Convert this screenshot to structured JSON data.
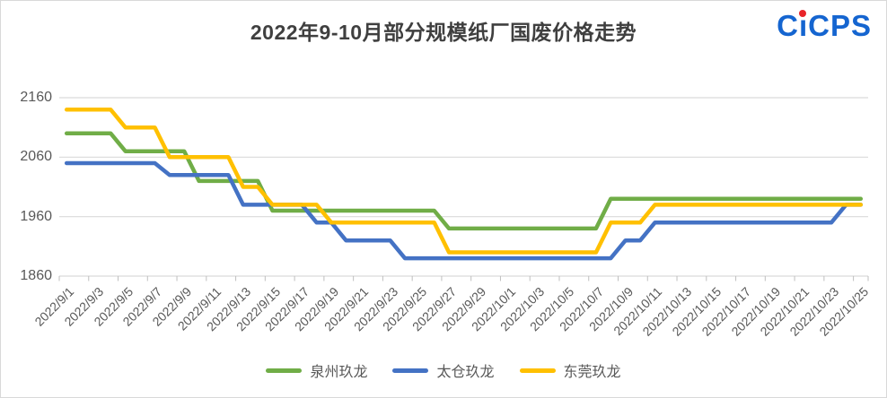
{
  "title": "2022年9-10月部分规模纸厂国废价格走势",
  "logo": {
    "text": "CıCPS",
    "dot_color": "#e8252a",
    "text_color": "#1565d0"
  },
  "y_axis": {
    "tick_labels": [
      "2160",
      "2060",
      "1960",
      "1860"
    ]
  },
  "chart_data": {
    "type": "line",
    "title": "2022年9-10月部分规模纸厂国废价格走势",
    "xlabel": "",
    "ylabel": "",
    "ylim": [
      1860,
      2160
    ],
    "y_ticks": [
      1860,
      1960,
      2060,
      2160
    ],
    "grid": "horizontal",
    "legend_position": "bottom",
    "x_label_every": 2,
    "x": [
      "2022/9/1",
      "2022/9/2",
      "2022/9/3",
      "2022/9/4",
      "2022/9/5",
      "2022/9/6",
      "2022/9/7",
      "2022/9/8",
      "2022/9/9",
      "2022/9/10",
      "2022/9/11",
      "2022/9/12",
      "2022/9/13",
      "2022/9/14",
      "2022/9/15",
      "2022/9/16",
      "2022/9/17",
      "2022/9/18",
      "2022/9/19",
      "2022/9/20",
      "2022/9/21",
      "2022/9/22",
      "2022/9/23",
      "2022/9/24",
      "2022/9/25",
      "2022/9/26",
      "2022/9/27",
      "2022/9/28",
      "2022/9/29",
      "2022/9/30",
      "2022/10/1",
      "2022/10/2",
      "2022/10/3",
      "2022/10/4",
      "2022/10/5",
      "2022/10/6",
      "2022/10/7",
      "2022/10/8",
      "2022/10/9",
      "2022/10/10",
      "2022/10/11",
      "2022/10/12",
      "2022/10/13",
      "2022/10/14",
      "2022/10/15",
      "2022/10/16",
      "2022/10/17",
      "2022/10/18",
      "2022/10/19",
      "2022/10/20",
      "2022/10/21",
      "2022/10/22",
      "2022/10/23",
      "2022/10/24",
      "2022/10/25"
    ],
    "series": [
      {
        "name": "泉州玖龙",
        "key": "quanzhou-jiulong",
        "color": "#70AD47",
        "values": [
          2100,
          2100,
          2100,
          2100,
          2070,
          2070,
          2070,
          2070,
          2070,
          2020,
          2020,
          2020,
          2020,
          2020,
          1970,
          1970,
          1970,
          1970,
          1970,
          1970,
          1970,
          1970,
          1970,
          1970,
          1970,
          1970,
          1940,
          1940,
          1940,
          1940,
          1940,
          1940,
          1940,
          1940,
          1940,
          1940,
          1940,
          1990,
          1990,
          1990,
          1990,
          1990,
          1990,
          1990,
          1990,
          1990,
          1990,
          1990,
          1990,
          1990,
          1990,
          1990,
          1990,
          1990,
          1990
        ]
      },
      {
        "name": "太仓玖龙",
        "key": "taicang-jiulong",
        "color": "#4472C4",
        "values": [
          2050,
          2050,
          2050,
          2050,
          2050,
          2050,
          2050,
          2030,
          2030,
          2030,
          2030,
          2030,
          1980,
          1980,
          1980,
          1980,
          1980,
          1950,
          1950,
          1920,
          1920,
          1920,
          1920,
          1890,
          1890,
          1890,
          1890,
          1890,
          1890,
          1890,
          1890,
          1890,
          1890,
          1890,
          1890,
          1890,
          1890,
          1890,
          1920,
          1920,
          1950,
          1950,
          1950,
          1950,
          1950,
          1950,
          1950,
          1950,
          1950,
          1950,
          1950,
          1950,
          1950,
          1980,
          1980
        ]
      },
      {
        "name": "东莞玖龙",
        "key": "dongguan-jiulong",
        "color": "#FFC000",
        "values": [
          2140,
          2140,
          2140,
          2140,
          2110,
          2110,
          2110,
          2060,
          2060,
          2060,
          2060,
          2060,
          2010,
          2010,
          1980,
          1980,
          1980,
          1980,
          1950,
          1950,
          1950,
          1950,
          1950,
          1950,
          1950,
          1950,
          1900,
          1900,
          1900,
          1900,
          1900,
          1900,
          1900,
          1900,
          1900,
          1900,
          1900,
          1950,
          1950,
          1950,
          1980,
          1980,
          1980,
          1980,
          1980,
          1980,
          1980,
          1980,
          1980,
          1980,
          1980,
          1980,
          1980,
          1980,
          1980
        ]
      }
    ]
  }
}
